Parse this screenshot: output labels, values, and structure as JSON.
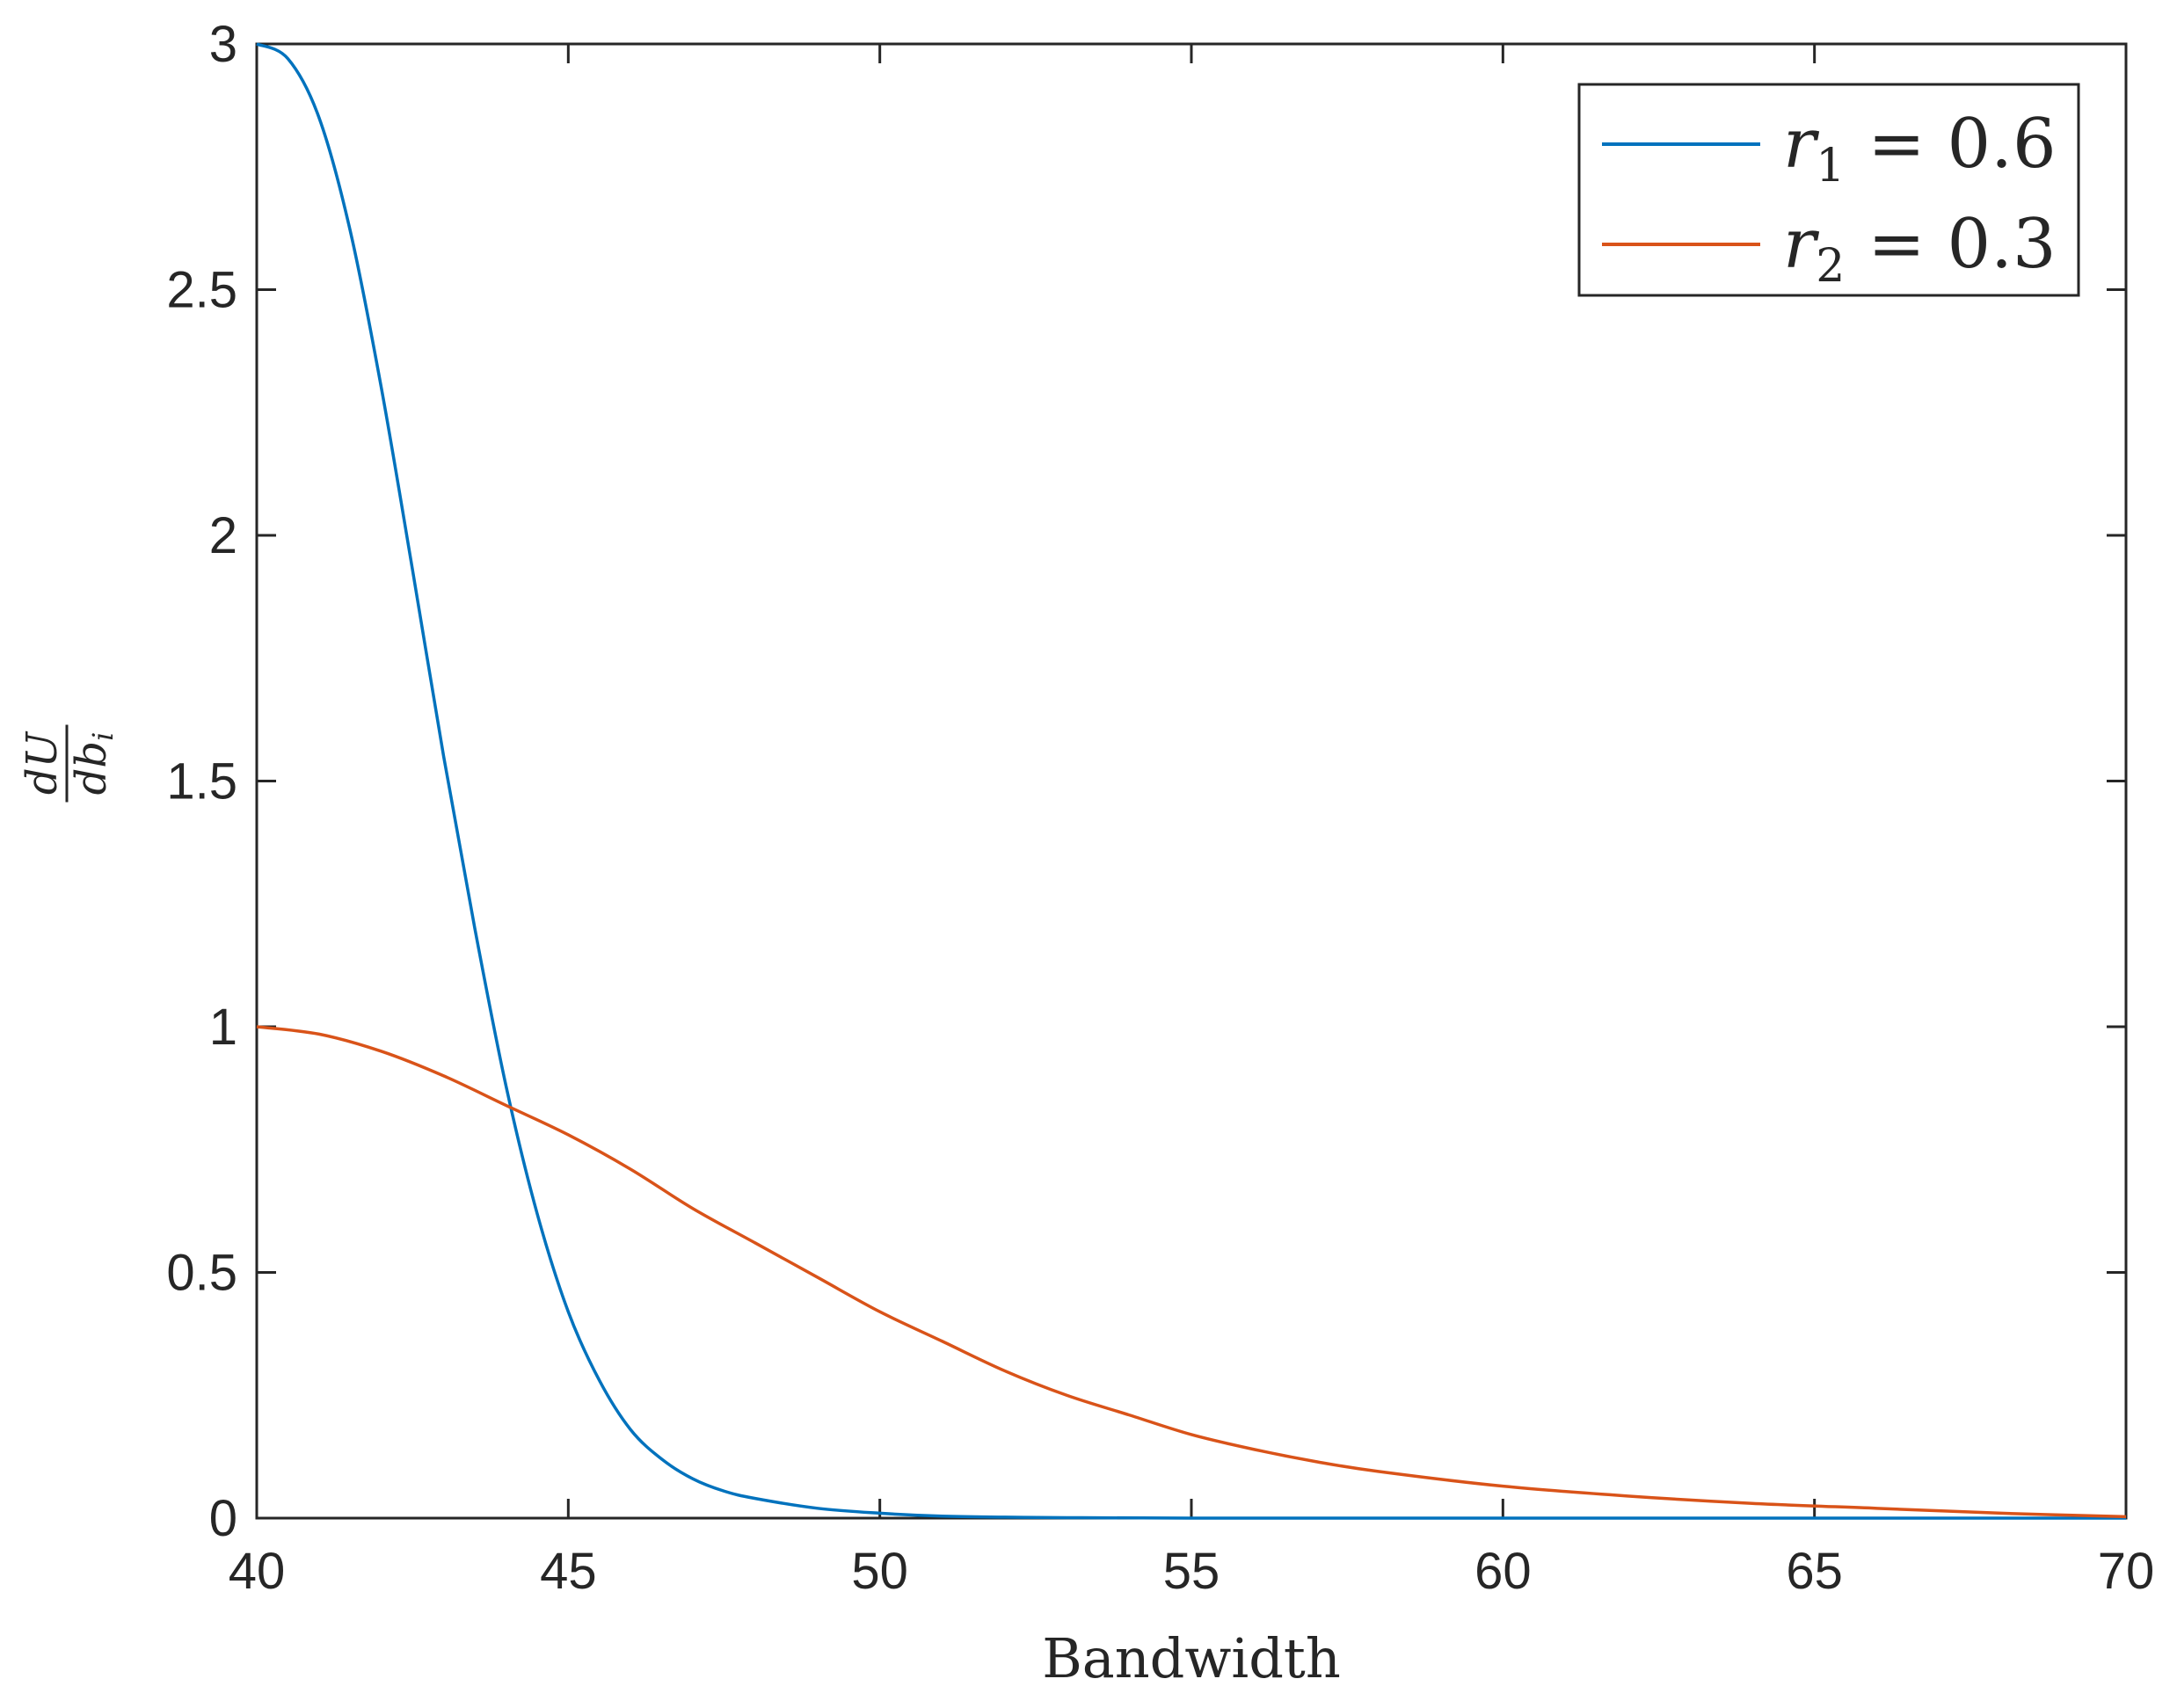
{
  "chart_data": {
    "type": "line",
    "title": "",
    "xlabel": "Bandwidth",
    "ylabel": {
      "numerator": "dU",
      "denominator_base": "db",
      "denominator_sub": "i"
    },
    "xlim": [
      40,
      70
    ],
    "ylim": [
      0,
      3
    ],
    "xticks": [
      40,
      45,
      50,
      55,
      60,
      65,
      70
    ],
    "yticks": [
      0,
      0.5,
      1,
      1.5,
      2,
      2.5,
      3
    ],
    "xtick_labels": [
      "40",
      "45",
      "50",
      "55",
      "60",
      "65",
      "70"
    ],
    "ytick_labels": [
      "0",
      "0.5",
      "1",
      "1.5",
      "2",
      "2.5",
      "3"
    ],
    "grid": false,
    "legend_position": "top-right",
    "series": [
      {
        "name": "r1 = 0.6",
        "legend": {
          "var": "r",
          "sub": "1",
          "rest": "= 0.6"
        },
        "color": "#0072BD",
        "x": [
          40,
          40.5,
          41,
          41.5,
          42,
          42.5,
          43,
          43.5,
          44,
          44.5,
          45,
          45.5,
          46,
          46.5,
          47,
          47.5,
          48,
          49,
          50,
          51,
          52,
          53,
          55,
          60,
          65,
          70
        ],
        "y": [
          3.0,
          2.97,
          2.85,
          2.62,
          2.3,
          1.93,
          1.55,
          1.2,
          0.88,
          0.62,
          0.42,
          0.28,
          0.18,
          0.12,
          0.08,
          0.055,
          0.04,
          0.02,
          0.01,
          0.004,
          0.002,
          0.001,
          0,
          0,
          0,
          0
        ]
      },
      {
        "name": "r2 = 0.3",
        "legend": {
          "var": "r",
          "sub": "2",
          "rest": "= 0.3"
        },
        "color": "#D95319",
        "x": [
          40,
          41,
          42,
          43,
          44,
          45,
          46,
          47,
          48,
          49,
          50,
          51,
          52,
          53,
          54,
          55,
          56,
          57,
          58,
          60,
          62,
          64,
          66,
          68,
          70
        ],
        "y": [
          1.0,
          0.985,
          0.95,
          0.9,
          0.84,
          0.78,
          0.71,
          0.63,
          0.56,
          0.49,
          0.42,
          0.36,
          0.3,
          0.25,
          0.21,
          0.17,
          0.14,
          0.115,
          0.095,
          0.065,
          0.045,
          0.03,
          0.02,
          0.01,
          0.003
        ]
      }
    ]
  }
}
